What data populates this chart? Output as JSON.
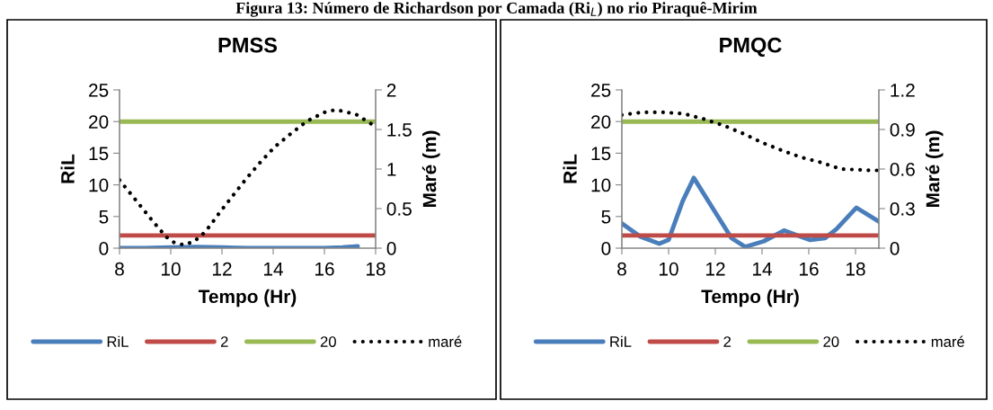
{
  "chart_data": [
    {
      "type": "line",
      "title": "PMSS",
      "xlabel": "Tempo (Hr)",
      "ylabel": "RiL",
      "y2label": "Maré (m)",
      "annotations": [
        "Figura 13: Número de Richardson por Camada (Ri$_{L}$) no rio Piraquê-Mirim"
      ],
      "xlim": [
        8,
        18
      ],
      "xticks": [
        8,
        10,
        12,
        14,
        16,
        18
      ],
      "ylim": [
        0,
        25
      ],
      "yticks": [
        0,
        5,
        10,
        15,
        20,
        25
      ],
      "y2lim": [
        0,
        2
      ],
      "y2ticks": [
        0,
        0.5,
        1,
        1.5,
        2
      ],
      "grid": false,
      "legend": "bottom",
      "series": [
        {
          "name": "RiL",
          "color": "#4a7ebb",
          "line_style": "solid",
          "x": [
            8,
            9,
            10,
            11,
            12,
            13,
            14,
            15,
            16,
            16.7,
            17.3
          ],
          "values": [
            0,
            0,
            0.1,
            0.2,
            0.1,
            0,
            0,
            0,
            0,
            0.1,
            0.3
          ]
        },
        {
          "name": "2",
          "color": "#be4b48",
          "line_style": "solid",
          "x": [
            8,
            18
          ],
          "values": [
            2,
            2
          ]
        },
        {
          "name": "20",
          "color": "#98b954",
          "line_style": "solid",
          "x": [
            8,
            18
          ],
          "values": [
            20,
            20
          ]
        },
        {
          "name": "maré",
          "color": "#000000",
          "line_style": "dotted",
          "axis": "y2",
          "x": [
            8,
            8.53,
            9.3,
            9.83,
            10.14,
            10.54,
            10.93,
            11.23,
            11.5,
            11.98,
            12.49,
            12.98,
            13.51,
            14.06,
            14.7,
            15.34,
            16.03,
            16.46,
            17.24,
            17.93
          ],
          "values": [
            0.86,
            0.65,
            0.34,
            0.14,
            0.07,
            0.04,
            0.09,
            0.17,
            0.27,
            0.48,
            0.69,
            0.89,
            1.09,
            1.28,
            1.45,
            1.61,
            1.72,
            1.75,
            1.69,
            1.55
          ]
        }
      ]
    },
    {
      "type": "line",
      "title": "PMQC",
      "xlabel": "Tempo (Hr)",
      "ylabel": "RiL",
      "y2label": "Maré (m)",
      "xlim": [
        8,
        19
      ],
      "xticks": [
        8,
        10,
        12,
        14,
        16,
        18
      ],
      "ylim": [
        0,
        25
      ],
      "yticks": [
        0,
        5,
        10,
        15,
        20,
        25
      ],
      "y2lim": [
        0,
        1.2
      ],
      "y2ticks": [
        0,
        0.3,
        0.6,
        0.9,
        1.2
      ],
      "grid": false,
      "legend": "bottom",
      "series": [
        {
          "name": "RiL",
          "color": "#4a7ebb",
          "line_style": "solid",
          "x": [
            8,
            8.8,
            9.6,
            10,
            10.6,
            11.08,
            11.96,
            12.69,
            13.28,
            14.08,
            14.94,
            15.53,
            16.06,
            16.7,
            17.18,
            18.04,
            19
          ],
          "values": [
            3.9,
            1.8,
            0.7,
            1.3,
            7.4,
            11.1,
            5.9,
            1.6,
            0.2,
            1.1,
            2.8,
            2.0,
            1.3,
            1.6,
            3.0,
            6.4,
            4.2
          ]
        },
        {
          "name": "2",
          "color": "#be4b48",
          "line_style": "solid",
          "x": [
            8,
            19
          ],
          "values": [
            2,
            2
          ]
        },
        {
          "name": "20",
          "color": "#98b954",
          "line_style": "solid",
          "x": [
            8,
            19
          ],
          "values": [
            20,
            20
          ]
        },
        {
          "name": "maré",
          "color": "#000000",
          "line_style": "dotted",
          "axis": "y2",
          "x": [
            8,
            8.86,
            9.32,
            9.78,
            10.64,
            11.5,
            12.36,
            13.18,
            14.01,
            14.87,
            15.66,
            16.52,
            17.37,
            18.7,
            19
          ],
          "values": [
            1.01,
            1.03,
            1.03,
            1.03,
            1.02,
            0.98,
            0.93,
            0.87,
            0.8,
            0.74,
            0.69,
            0.65,
            0.6,
            0.59,
            0.59
          ]
        }
      ]
    }
  ]
}
